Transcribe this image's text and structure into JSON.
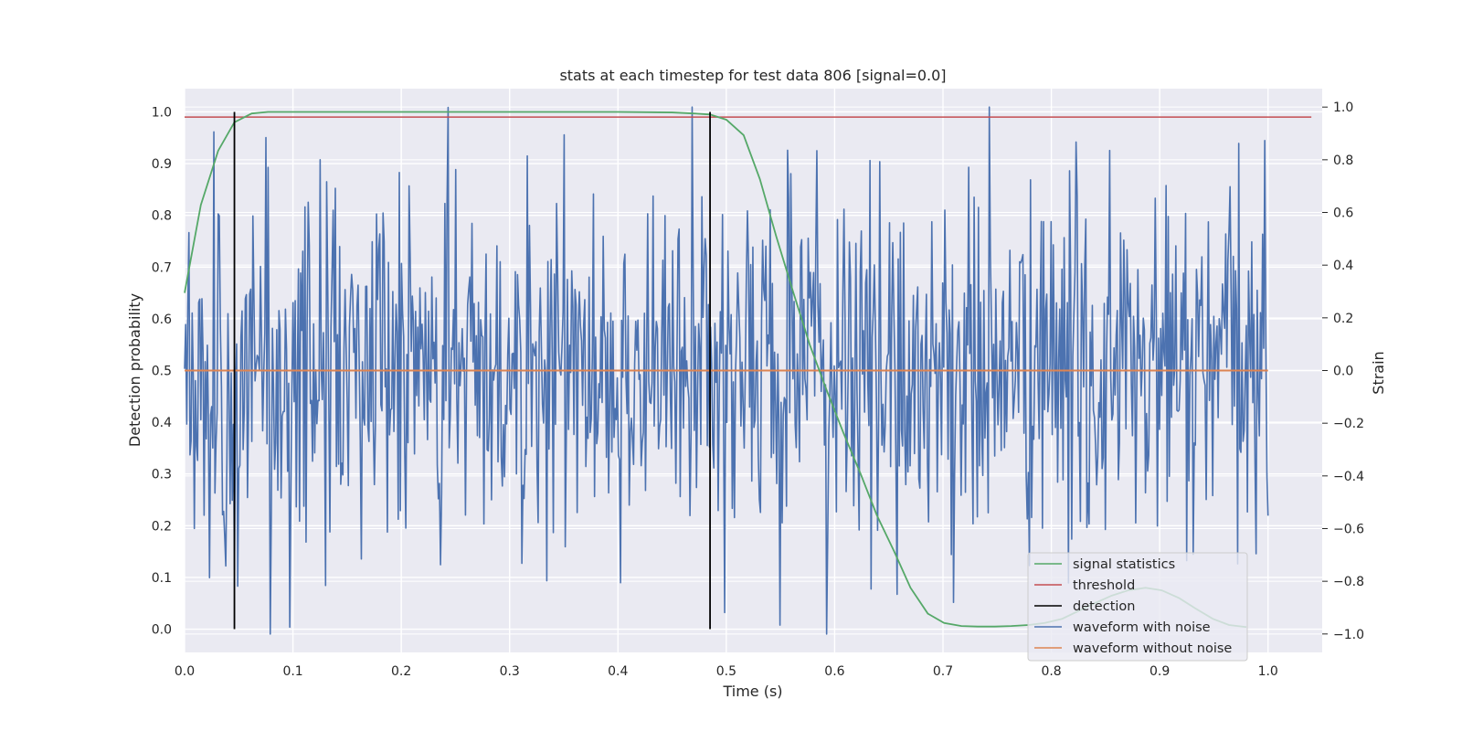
{
  "chart_data": {
    "type": "line",
    "title": "stats at each timestep for test data 806 [signal=0.0]",
    "xlabel": "Time (s)",
    "ylabel_left": "Detection probability",
    "ylabel_right": "Strain",
    "xlim": [
      0.0,
      1.05
    ],
    "ylim_left": [
      -0.045,
      1.045
    ],
    "ylim_right": [
      -1.07,
      1.07
    ],
    "x_ticks": [
      "0.0",
      "0.1",
      "0.2",
      "0.3",
      "0.4",
      "0.5",
      "0.6",
      "0.7",
      "0.8",
      "0.9",
      "1.0"
    ],
    "y_left_ticks": [
      "0.0",
      "0.1",
      "0.2",
      "0.3",
      "0.4",
      "0.5",
      "0.6",
      "0.7",
      "0.8",
      "0.9",
      "1.0"
    ],
    "y_right_ticks": [
      "−1.0",
      "−0.8",
      "−0.6",
      "−0.4",
      "−0.2",
      "0.0",
      "0.2",
      "0.4",
      "0.6",
      "0.8",
      "1.0"
    ],
    "grid": true,
    "legend_position": "lower-right",
    "colors": {
      "background": "#eaeaf2",
      "grid": "#ffffff",
      "signal_statistics": "#55a868",
      "threshold": "#c44e52",
      "detection": "#000000",
      "waveform_with_noise": "#4c72b0",
      "waveform_without_noise": "#dd8452"
    },
    "series": [
      {
        "name": "signal statistics",
        "axis": "left",
        "x": [
          0.0,
          0.015,
          0.031,
          0.046,
          0.062,
          0.077,
          0.093,
          0.2,
          0.3,
          0.4,
          0.45,
          0.47,
          0.485,
          0.5,
          0.516,
          0.531,
          0.546,
          0.562,
          0.577,
          0.593,
          0.608,
          0.624,
          0.639,
          0.655,
          0.67,
          0.686,
          0.701,
          0.717,
          0.732,
          0.748,
          0.763,
          0.779,
          0.794,
          0.81,
          0.825,
          0.84,
          0.856,
          0.871,
          0.887,
          0.902,
          0.918,
          0.933,
          0.949,
          0.964,
          0.98
        ],
        "y": [
          0.65,
          0.82,
          0.925,
          0.98,
          0.997,
          1.0,
          1.0,
          1.0,
          1.0,
          1.0,
          0.999,
          0.997,
          0.995,
          0.985,
          0.955,
          0.87,
          0.76,
          0.65,
          0.55,
          0.46,
          0.38,
          0.3,
          0.22,
          0.15,
          0.08,
          0.03,
          0.012,
          0.006,
          0.005,
          0.005,
          0.006,
          0.008,
          0.012,
          0.02,
          0.035,
          0.05,
          0.065,
          0.075,
          0.08,
          0.075,
          0.06,
          0.04,
          0.02,
          0.008,
          0.004
        ]
      },
      {
        "name": "threshold",
        "axis": "left",
        "x": [
          0.0,
          1.04
        ],
        "y": [
          0.99,
          0.99
        ]
      },
      {
        "name": "detection",
        "axis": "left",
        "x_positions": [
          0.046,
          0.485
        ],
        "y_range": [
          0.0,
          1.0
        ]
      },
      {
        "name": "waveform with noise",
        "axis": "right",
        "x_range": [
          0.0,
          1.0
        ],
        "amplitude_range": [
          -1.0,
          1.0
        ],
        "description_values": "noisy strain oscillation centered at 0.0"
      },
      {
        "name": "waveform without noise",
        "axis": "right",
        "x": [
          0.0,
          1.0
        ],
        "y": [
          0.0,
          0.0
        ]
      }
    ],
    "legend": [
      "signal statistics",
      "threshold",
      "detection",
      "waveform with noise",
      "waveform without noise"
    ]
  }
}
